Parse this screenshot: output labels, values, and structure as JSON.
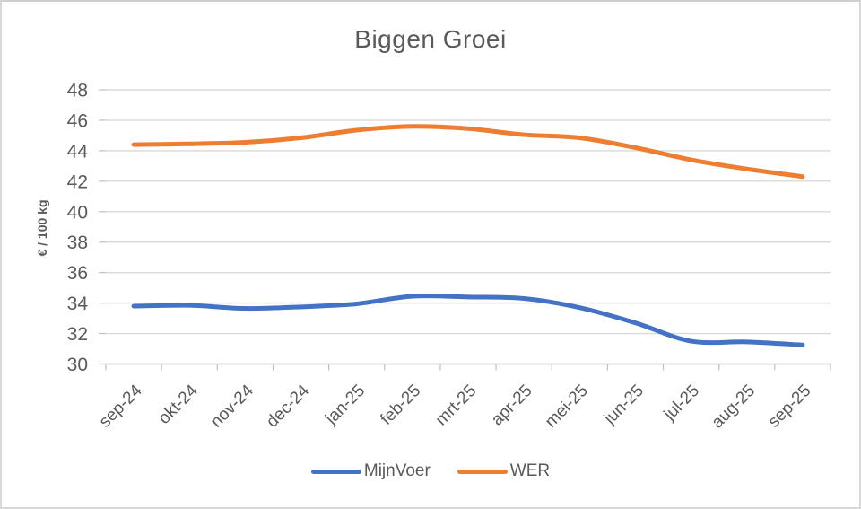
{
  "chart_data": {
    "type": "line",
    "title": "Biggen Groei",
    "ylabel": "€ / 100 kg",
    "xlabel": "",
    "categories": [
      "sep-24",
      "okt-24",
      "nov-24",
      "dec-24",
      "jan-25",
      "feb-25",
      "mrt-25",
      "apr-25",
      "mei-25",
      "jun-25",
      "jul-25",
      "aug-25",
      "sep-25"
    ],
    "series": [
      {
        "name": "MijnVoer",
        "color": "#4472C4",
        "values": [
          33.8,
          33.85,
          33.65,
          33.75,
          33.95,
          34.45,
          34.4,
          34.3,
          33.7,
          32.7,
          31.5,
          31.45,
          31.25
        ]
      },
      {
        "name": "WER",
        "color": "#ED7D31",
        "values": [
          44.4,
          44.45,
          44.55,
          44.85,
          45.35,
          45.6,
          45.45,
          45.05,
          44.85,
          44.2,
          43.4,
          42.8,
          42.3
        ]
      }
    ],
    "y_axis": {
      "min": 30,
      "max": 48,
      "step": 2,
      "tick_labels": [
        "30",
        "32",
        "34",
        "36",
        "38",
        "40",
        "42",
        "44",
        "46",
        "48"
      ]
    },
    "ylim": [
      30,
      48
    ],
    "grid": true,
    "smooth": true,
    "legend_position": "bottom",
    "style": {
      "text_color": "#595959",
      "gridline_color": "#d9d9d9",
      "axis_color": "#bfbfbf",
      "background": "#ffffff"
    }
  }
}
